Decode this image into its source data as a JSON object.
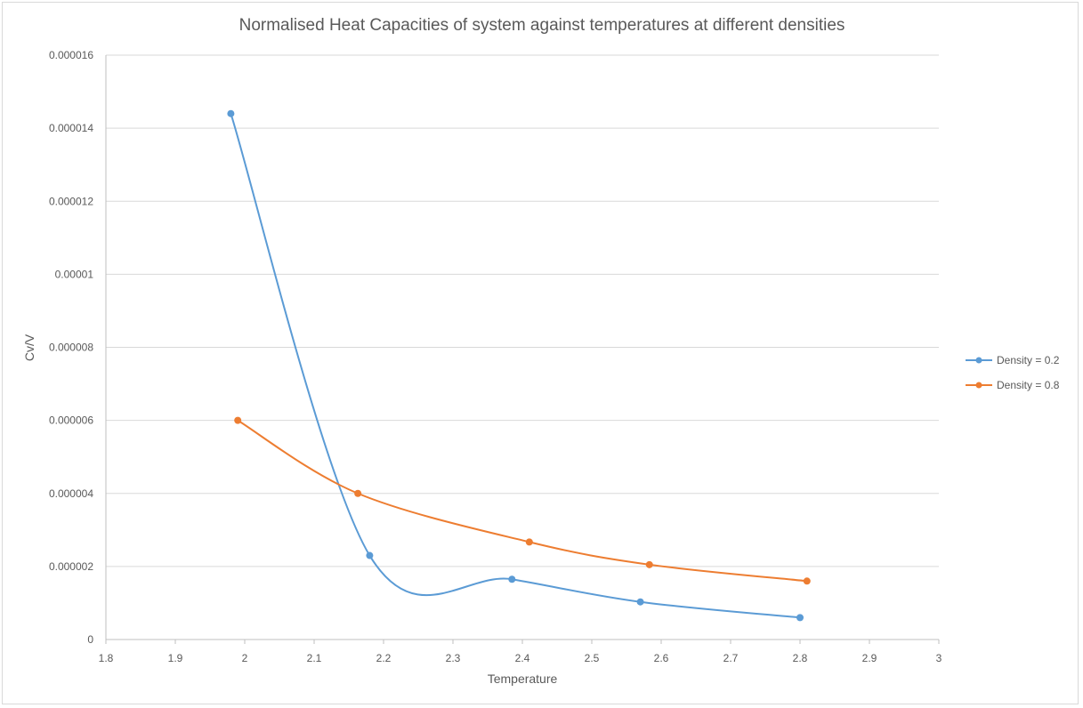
{
  "chart_data": {
    "type": "line",
    "title": "Normalised Heat Capacities of system against temperatures at different densities",
    "xlabel": "Temperature",
    "ylabel": "Cv/V",
    "xlim": [
      1.8,
      3
    ],
    "ylim": [
      0,
      1.6e-05
    ],
    "xticks": [
      "1.8",
      "1.9",
      "2",
      "2.1",
      "2.2",
      "2.3",
      "2.4",
      "2.5",
      "2.6",
      "2.7",
      "2.8",
      "2.9",
      "3"
    ],
    "yticks": [
      "0",
      "0.000002",
      "0.000004",
      "0.000006",
      "0.000008",
      "0.00001",
      "0.000012",
      "0.000014",
      "0.000016"
    ],
    "smooth": true,
    "grid": {
      "horizontal": true,
      "vertical": false
    },
    "legend_position": "right",
    "series": [
      {
        "name": "Density = 0.2",
        "color": "#5b9bd5",
        "x": [
          1.98,
          2.18,
          2.385,
          2.57,
          2.8
        ],
        "y": [
          1.44e-05,
          2.3e-06,
          1.65e-06,
          1.03e-06,
          6e-07
        ]
      },
      {
        "name": "Density = 0.8",
        "color": "#ed7d31",
        "x": [
          1.99,
          2.163,
          2.41,
          2.583,
          2.81
        ],
        "y": [
          6e-06,
          4e-06,
          2.67e-06,
          2.05e-06,
          1.6e-06
        ]
      }
    ]
  }
}
